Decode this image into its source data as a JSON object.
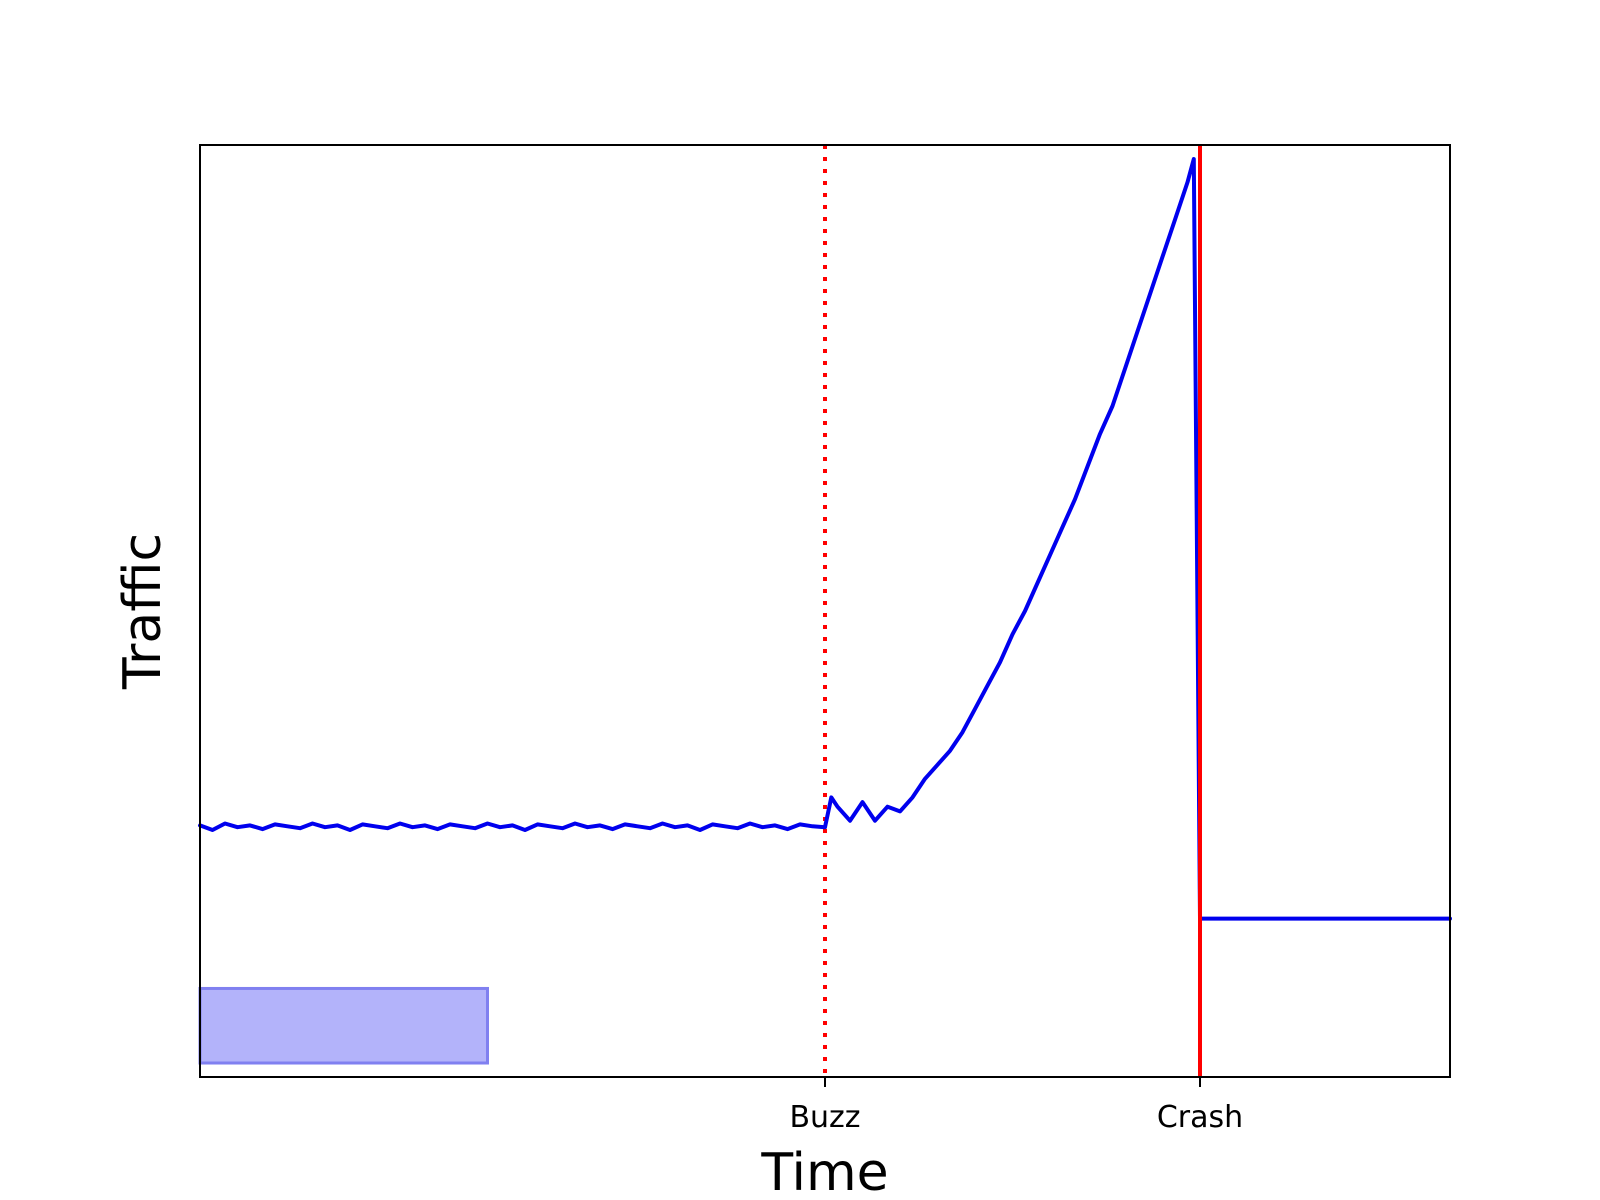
{
  "chart_data": {
    "type": "line",
    "title": "",
    "xlabel": "Time",
    "ylabel": "Traffic",
    "xlim": [
      0,
      100
    ],
    "ylim": [
      0,
      100
    ],
    "grid": false,
    "x_ticks": [
      {
        "value": 50,
        "label": "Buzz"
      },
      {
        "value": 80,
        "label": "Crash"
      }
    ],
    "y_ticks": [],
    "colors": {
      "series": "#0000ee",
      "buzz_line": "#ff0000",
      "crash_line": "#ff0000",
      "patch_fill": "#b3b3fa",
      "patch_edge": "#8080f0"
    },
    "series": [
      {
        "points": [
          [
            0,
            27.0
          ],
          [
            1,
            26.5
          ],
          [
            2,
            27.2
          ],
          [
            3,
            26.8
          ],
          [
            4,
            27.0
          ],
          [
            5,
            26.6
          ],
          [
            6,
            27.1
          ],
          [
            7,
            26.9
          ],
          [
            8,
            26.7
          ],
          [
            9,
            27.2
          ],
          [
            10,
            26.8
          ],
          [
            11,
            27.0
          ],
          [
            12,
            26.5
          ],
          [
            13,
            27.1
          ],
          [
            14,
            26.9
          ],
          [
            15,
            26.7
          ],
          [
            16,
            27.2
          ],
          [
            17,
            26.8
          ],
          [
            18,
            27.0
          ],
          [
            19,
            26.6
          ],
          [
            20,
            27.1
          ],
          [
            21,
            26.9
          ],
          [
            22,
            26.7
          ],
          [
            23,
            27.2
          ],
          [
            24,
            26.8
          ],
          [
            25,
            27.0
          ],
          [
            26,
            26.5
          ],
          [
            27,
            27.1
          ],
          [
            28,
            26.9
          ],
          [
            29,
            26.7
          ],
          [
            30,
            27.2
          ],
          [
            31,
            26.8
          ],
          [
            32,
            27.0
          ],
          [
            33,
            26.6
          ],
          [
            34,
            27.1
          ],
          [
            35,
            26.9
          ],
          [
            36,
            26.7
          ],
          [
            37,
            27.2
          ],
          [
            38,
            26.8
          ],
          [
            39,
            27.0
          ],
          [
            40,
            26.5
          ],
          [
            41,
            27.1
          ],
          [
            42,
            26.9
          ],
          [
            43,
            26.7
          ],
          [
            44,
            27.2
          ],
          [
            45,
            26.8
          ],
          [
            46,
            27.0
          ],
          [
            47,
            26.6
          ],
          [
            48,
            27.1
          ],
          [
            49,
            26.9
          ],
          [
            50,
            26.8
          ],
          [
            50.5,
            30.0
          ],
          [
            51,
            29.0
          ],
          [
            52,
            27.5
          ],
          [
            53,
            29.5
          ],
          [
            54,
            27.5
          ],
          [
            55,
            29.0
          ],
          [
            56,
            28.5
          ],
          [
            57,
            30.0
          ],
          [
            58,
            32.0
          ],
          [
            59,
            33.5
          ],
          [
            60,
            35.0
          ],
          [
            61,
            37.0
          ],
          [
            62,
            39.5
          ],
          [
            63,
            42.0
          ],
          [
            64,
            44.5
          ],
          [
            65,
            47.5
          ],
          [
            66,
            50.0
          ],
          [
            67,
            53.0
          ],
          [
            68,
            56.0
          ],
          [
            69,
            59.0
          ],
          [
            70,
            62.0
          ],
          [
            71,
            65.5
          ],
          [
            72,
            69.0
          ],
          [
            73,
            72.0
          ],
          [
            74,
            76.0
          ],
          [
            75,
            80.0
          ],
          [
            76,
            84.0
          ],
          [
            77,
            88.0
          ],
          [
            78,
            92.0
          ],
          [
            79,
            96.0
          ],
          [
            79.5,
            98.5
          ],
          [
            80,
            17.0
          ],
          [
            100,
            17.0
          ]
        ]
      }
    ],
    "vlines": [
      {
        "x": 50,
        "style": "dotted",
        "color": "#ff0000"
      },
      {
        "x": 80,
        "style": "solid",
        "color": "#ff0000"
      }
    ],
    "patch": {
      "x0": 0,
      "x1": 23,
      "y0": 1.5,
      "y1": 9.5
    }
  }
}
